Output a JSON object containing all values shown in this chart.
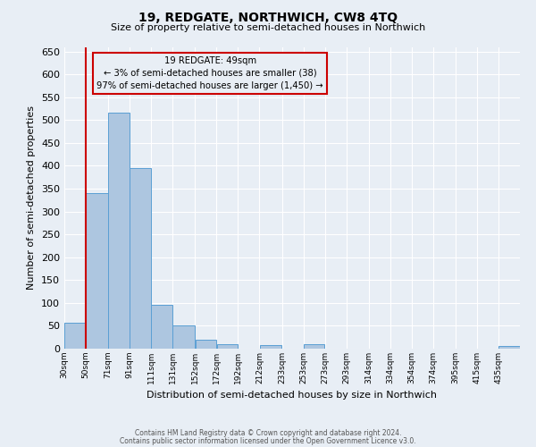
{
  "title": "19, REDGATE, NORTHWICH, CW8 4TQ",
  "subtitle": "Size of property relative to semi-detached houses in Northwich",
  "xlabel": "Distribution of semi-detached houses by size in Northwich",
  "ylabel": "Number of semi-detached properties",
  "bar_color": "#adc6e0",
  "bar_edge_color": "#5a9fd4",
  "bg_color": "#e8eef5",
  "grid_color": "#ffffff",
  "annotation_box_color": "#cc0000",
  "annotation_title": "19 REDGATE: 49sqm",
  "annotation_line1": "← 3% of semi-detached houses are smaller (38)",
  "annotation_line2": "97% of semi-detached houses are larger (1,450) →",
  "ylim": [
    0,
    660
  ],
  "categories": [
    "30sqm",
    "50sqm",
    "71sqm",
    "91sqm",
    "111sqm",
    "131sqm",
    "152sqm",
    "172sqm",
    "192sqm",
    "212sqm",
    "233sqm",
    "253sqm",
    "273sqm",
    "293sqm",
    "314sqm",
    "334sqm",
    "354sqm",
    "374sqm",
    "395sqm",
    "415sqm",
    "435sqm"
  ],
  "bin_edges": [
    30,
    50,
    71,
    91,
    111,
    131,
    152,
    172,
    192,
    212,
    233,
    253,
    273,
    293,
    314,
    334,
    354,
    374,
    395,
    415,
    435,
    455
  ],
  "values": [
    57,
    340,
    517,
    395,
    95,
    50,
    20,
    10,
    0,
    8,
    0,
    10,
    0,
    0,
    0,
    0,
    0,
    0,
    0,
    0,
    5
  ],
  "footer1": "Contains HM Land Registry data © Crown copyright and database right 2024.",
  "footer2": "Contains public sector information licensed under the Open Government Licence v3.0."
}
